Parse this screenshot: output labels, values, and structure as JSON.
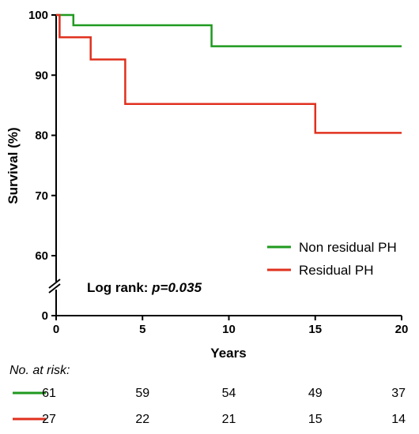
{
  "chart_data": {
    "type": "line",
    "step": true,
    "xlabel": "Years",
    "ylabel": "Survival (%)",
    "xlim": [
      0,
      20
    ],
    "x_ticks": [
      0,
      5,
      10,
      15,
      20
    ],
    "y_ticks": [
      60,
      70,
      80,
      90,
      100
    ],
    "y_break_tick": 0,
    "legend_position": "lower-right",
    "grid": false,
    "series": [
      {
        "name": "Non residual PH",
        "color": "#1f9a1f",
        "points": [
          [
            0,
            100
          ],
          [
            1,
            100
          ],
          [
            1,
            98.3
          ],
          [
            9,
            98.3
          ],
          [
            9,
            94.8
          ],
          [
            20,
            94.8
          ]
        ]
      },
      {
        "name": "Residual PH",
        "color": "#e0301e",
        "points": [
          [
            0,
            100
          ],
          [
            0.2,
            100
          ],
          [
            0.2,
            96.3
          ],
          [
            2,
            96.3
          ],
          [
            2,
            92.6
          ],
          [
            4,
            92.6
          ],
          [
            4,
            85.2
          ],
          [
            15,
            85.2
          ],
          [
            15,
            80.4
          ],
          [
            20,
            80.4
          ]
        ]
      }
    ],
    "annotation": {
      "prefix": "Log rank: ",
      "value": "p=0.035"
    },
    "risk_table": {
      "title": "No. at risk:",
      "rows": [
        {
          "color": "#1f9a1f",
          "values": [
            "61",
            "59",
            "54",
            "49",
            "37"
          ]
        },
        {
          "color": "#e0301e",
          "values": [
            "27",
            "22",
            "21",
            "15",
            "14"
          ]
        }
      ]
    }
  }
}
